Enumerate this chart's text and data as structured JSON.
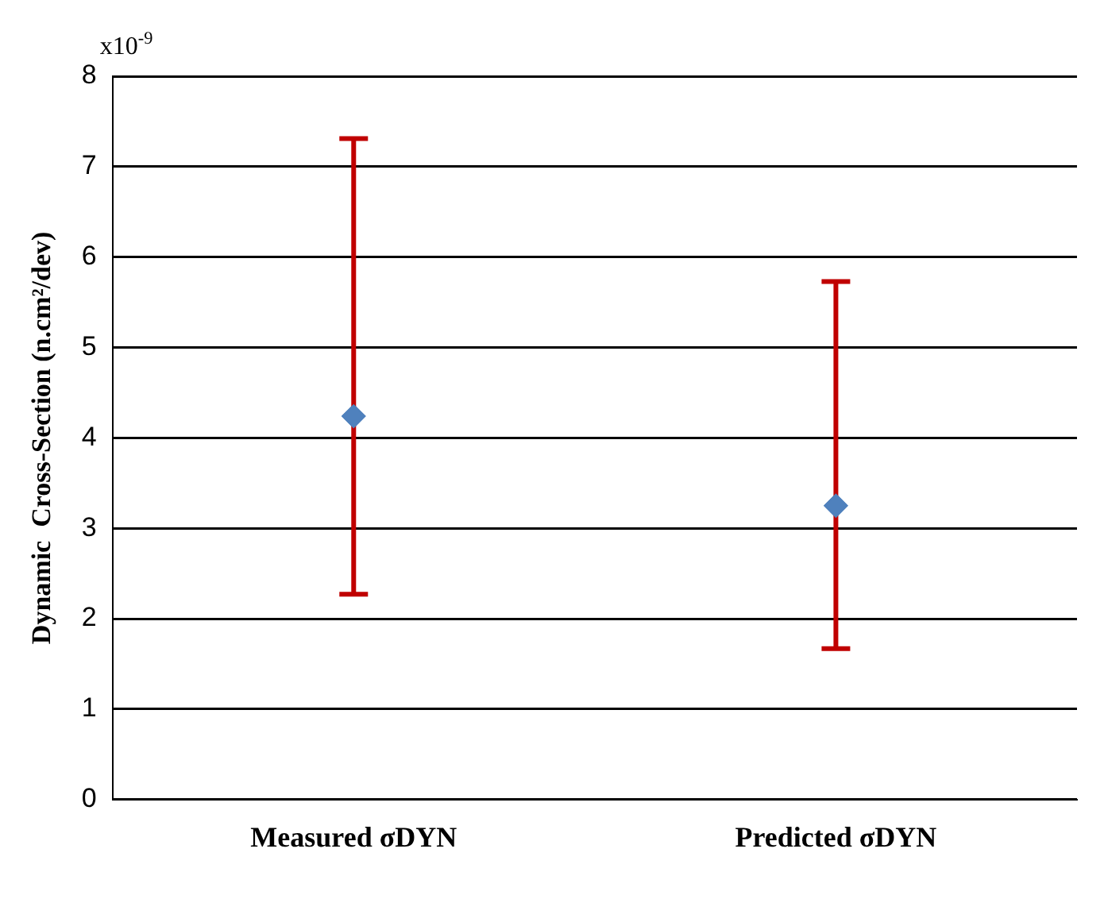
{
  "chart_data": {
    "type": "scatter",
    "ylabel": "Dynamic  Cross-Section (n.cm²/dev)",
    "annotations": [
      "x10$^{-9}$"
    ],
    "categories": [
      "Measured σDYN",
      "Predicted σDYN"
    ],
    "series": [
      {
        "color": "#4f81bd",
        "values": [
          4.24,
          3.25
        ],
        "errors": [
          [
            2.27,
            7.31
          ],
          [
            1.67,
            5.73
          ]
        ]
      }
    ],
    "ylim": [
      0,
      8
    ],
    "yticks": [
      0,
      1,
      2,
      3,
      4,
      5,
      6,
      7,
      8
    ],
    "grid": "y",
    "marker": "diamond",
    "legend": false
  }
}
